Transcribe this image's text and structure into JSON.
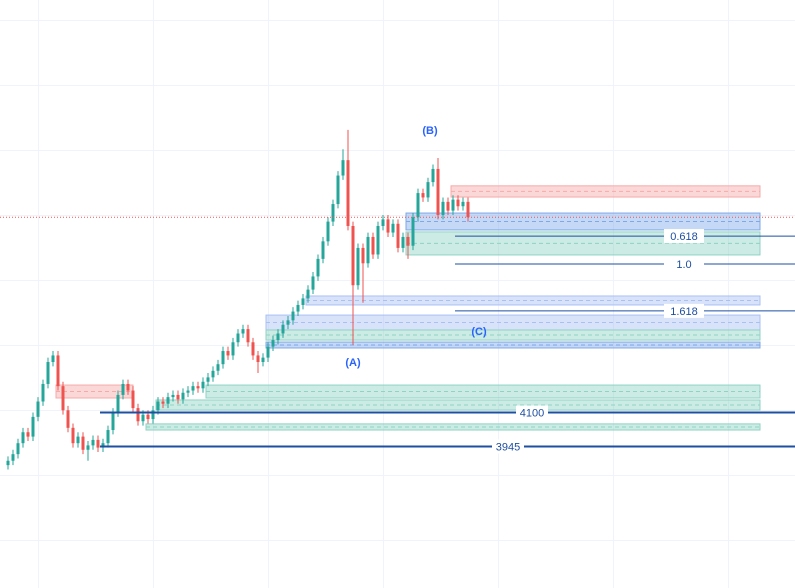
{
  "chart_data": {
    "type": "candlestick",
    "ylim": [
      3300,
      5980
    ],
    "up_color": "#26a69a",
    "down_color": "#ef5350",
    "open": [
      3860,
      3880,
      3910,
      3960,
      4010,
      3990,
      4080,
      4150,
      4230,
      4330,
      4360,
      4220,
      4110,
      4030,
      3960,
      3990,
      3930,
      3950,
      3975,
      3940,
      3960,
      4020,
      4100,
      4180,
      4230,
      4200,
      4120,
      4060,
      4090,
      4070,
      4110,
      4150,
      4140,
      4170,
      4180,
      4160,
      4190,
      4200,
      4220,
      4210,
      4240,
      4260,
      4290,
      4320,
      4380,
      4360,
      4420,
      4460,
      4480,
      4420,
      4360,
      4330,
      4350,
      4400,
      4430,
      4460,
      4500,
      4520,
      4560,
      4590,
      4620,
      4660,
      4720,
      4800,
      4880,
      4970,
      5050,
      5180,
      5250,
      4950,
      4680,
      4850,
      4780,
      4900,
      4820,
      4950,
      4980,
      4920,
      4960,
      4850,
      4900,
      4860,
      4990,
      5100,
      5080,
      5150,
      5210,
      5000,
      5060,
      5020,
      5070,
      5040,
      5060
    ],
    "high": [
      3900,
      3930,
      3980,
      4030,
      4030,
      4100,
      4170,
      4250,
      4350,
      4380,
      4380,
      4240,
      4130,
      4050,
      4010,
      4010,
      3970,
      3995,
      3995,
      3980,
      4040,
      4120,
      4200,
      4250,
      4250,
      4220,
      4140,
      4110,
      4110,
      4130,
      4170,
      4170,
      4190,
      4200,
      4200,
      4210,
      4220,
      4240,
      4240,
      4260,
      4280,
      4310,
      4340,
      4400,
      4400,
      4440,
      4480,
      4500,
      4500,
      4440,
      4380,
      4370,
      4420,
      4450,
      4480,
      4520,
      4540,
      4580,
      4610,
      4640,
      4680,
      4740,
      4820,
      4900,
      4990,
      5070,
      5200,
      5300,
      5388,
      4970,
      4870,
      4870,
      4920,
      4920,
      4970,
      5000,
      5000,
      4980,
      4980,
      4920,
      4920,
      5010,
      5120,
      5120,
      5170,
      5230,
      5260,
      5080,
      5080,
      5090,
      5090,
      5080,
      5080
    ],
    "low": [
      3840,
      3860,
      3890,
      3940,
      3970,
      3970,
      4060,
      4130,
      4210,
      4310,
      4200,
      4090,
      4010,
      3940,
      3940,
      3910,
      3880,
      3930,
      3920,
      3920,
      3940,
      4000,
      4080,
      4160,
      4180,
      4100,
      4040,
      4040,
      4050,
      4050,
      4090,
      4120,
      4120,
      4150,
      4140,
      4140,
      4170,
      4180,
      4190,
      4190,
      4220,
      4240,
      4270,
      4300,
      4340,
      4340,
      4400,
      4440,
      4400,
      4340,
      4280,
      4310,
      4330,
      4380,
      4410,
      4440,
      4480,
      4500,
      4540,
      4570,
      4600,
      4640,
      4700,
      4780,
      4860,
      4950,
      5030,
      5160,
      4930,
      4408,
      4660,
      4600,
      4760,
      4800,
      4800,
      4930,
      4900,
      4900,
      4830,
      4830,
      4800,
      4840,
      4970,
      5060,
      5060,
      5130,
      4980,
      4980,
      5000,
      5000,
      5020,
      5020,
      4970
    ],
    "close": [
      3880,
      3910,
      3960,
      4010,
      3990,
      4080,
      4150,
      4230,
      4330,
      4360,
      4220,
      4110,
      4030,
      3960,
      3990,
      3930,
      3950,
      3975,
      3940,
      3960,
      4020,
      4100,
      4180,
      4230,
      4200,
      4120,
      4060,
      4090,
      4070,
      4110,
      4150,
      4140,
      4170,
      4180,
      4160,
      4190,
      4200,
      4220,
      4210,
      4240,
      4260,
      4290,
      4320,
      4380,
      4360,
      4420,
      4460,
      4480,
      4420,
      4360,
      4330,
      4350,
      4400,
      4430,
      4460,
      4500,
      4520,
      4560,
      4590,
      4620,
      4660,
      4720,
      4800,
      4880,
      4970,
      5050,
      5180,
      5250,
      4950,
      4680,
      4850,
      4780,
      4900,
      4820,
      4950,
      4980,
      4920,
      4960,
      4850,
      4900,
      4860,
      4990,
      5100,
      5080,
      5150,
      5210,
      5000,
      5060,
      5020,
      5070,
      5040,
      5060,
      4990
    ],
    "zones": [
      {
        "low": 5082,
        "high": 5133,
        "start": 89,
        "color": "#f7a9a8"
      },
      {
        "low": 4932,
        "high": 5009,
        "start": 80,
        "color": "#7fa8e8"
      },
      {
        "low": 4818,
        "high": 4923,
        "start": 80,
        "color": "#8fd3c3"
      },
      {
        "low": 4590,
        "high": 4631,
        "start": 60,
        "color": "#a9c0f5"
      },
      {
        "low": 4476,
        "high": 4544,
        "start": 52,
        "color": "#a9c0f5"
      },
      {
        "low": 4430,
        "high": 4476,
        "start": 52,
        "color": "#8fd3c3"
      },
      {
        "low": 4394,
        "high": 4421,
        "start": 52,
        "color": "#7fa8e8"
      },
      {
        "low": 4166,
        "high": 4225,
        "start": 10,
        "end": 25,
        "color": "#f7a9a8"
      },
      {
        "low": 4166,
        "high": 4225,
        "start": 40,
        "color": "#8fd3c3"
      },
      {
        "low": 4111,
        "high": 4157,
        "start": 30,
        "color": "#8fd3c3"
      },
      {
        "low": 4020,
        "high": 4048,
        "start": 28,
        "color": "#8fd3c3"
      }
    ],
    "fib_levels": [
      {
        "value": 4904,
        "label": "0.618"
      },
      {
        "value": 4777,
        "label": "1.0"
      },
      {
        "value": 4563,
        "label": "1.618"
      }
    ],
    "levels": [
      4100,
      3945
    ],
    "wave_labels": [
      "(A)",
      "(B)",
      "(C)"
    ]
  }
}
